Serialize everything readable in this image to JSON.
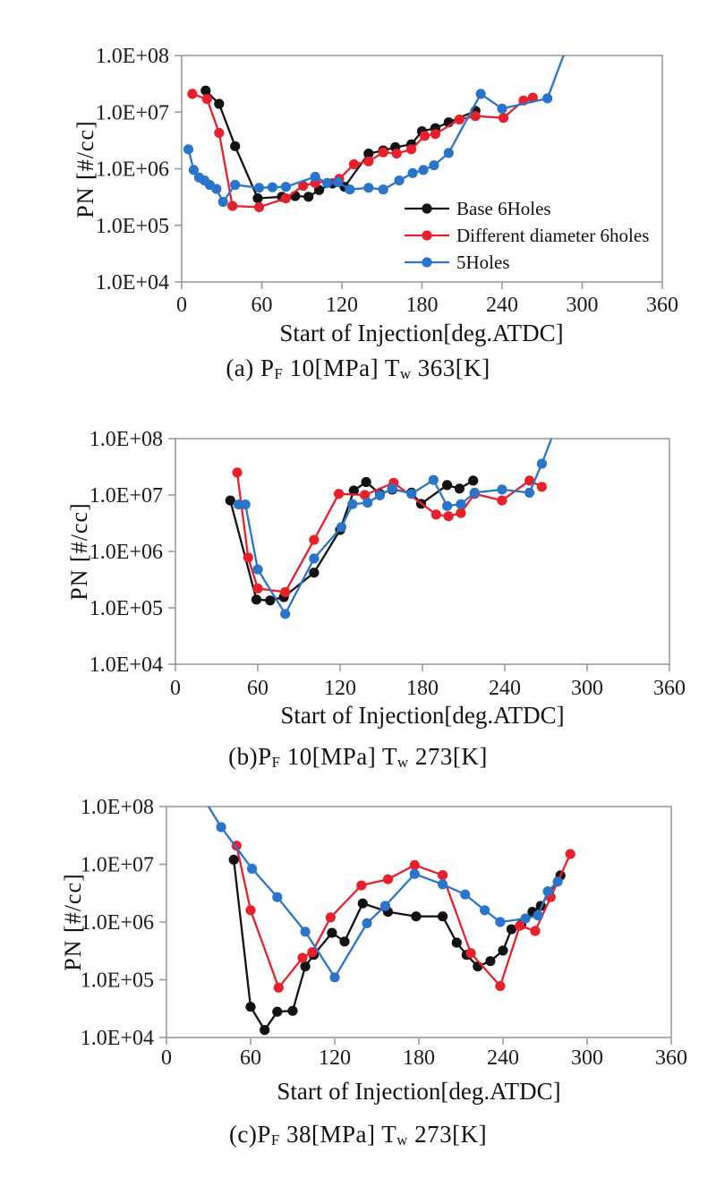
{
  "figure": {
    "x_axis_label": "Start of Injection[deg.ATDC]",
    "y_axis_label": "PN  [#/cc]",
    "y_tick_labels": [
      "1.0E+04",
      "1.0E+05",
      "1.0E+06",
      "1.0E+07",
      "1.0E+08"
    ],
    "x_tick_labels": [
      "0",
      "60",
      "120",
      "180",
      "240",
      "300",
      "360"
    ]
  },
  "colors": {
    "base": "#121212",
    "different": "#e8202b",
    "five": "#2a74c9",
    "axis": "#9b9b9b",
    "text": "#111111"
  },
  "chart_data": [
    {
      "type": "line",
      "xlabel": "Start of Injection[deg.ATDC]",
      "ylabel": "PN  [#/cc]",
      "xlim": [
        0,
        360
      ],
      "ylim": [
        10000,
        100000000
      ],
      "y_scale": "log",
      "grid": false,
      "legend_position": "inside-right-middle",
      "xticks": [
        "0",
        "60",
        "120",
        "180",
        "240",
        "300",
        "360"
      ],
      "yticks": [
        "1.0E+04",
        "1.0E+05",
        "1.0E+06",
        "1.0E+07",
        "1.0E+08"
      ],
      "caption": {
        "p1": "(a) P",
        "s1": "F",
        "p2": " 10[MPa] T",
        "s2": "w",
        "p3": " 363[K]"
      },
      "show_legend": true,
      "series": [
        {
          "name": "Base 6Holes",
          "color": "#121212",
          "points": [
            [
              18,
              24000000.0
            ],
            [
              28,
              14000000.0
            ],
            [
              40,
              2500000.0
            ],
            [
              57,
              300000.0
            ],
            [
              75,
              320000.0
            ],
            [
              85,
              330000.0
            ],
            [
              95,
              320000.0
            ],
            [
              103,
              420000.0
            ],
            [
              113,
              550000.0
            ],
            [
              122,
              480000.0
            ],
            [
              140,
              1850000.0
            ],
            [
              151,
              2100000.0
            ],
            [
              160,
              2400000.0
            ],
            [
              172,
              2700000.0
            ],
            [
              180,
              4600000.0
            ],
            [
              190,
              5200000.0
            ],
            [
              200,
              6600000.0
            ],
            [
              220,
              10500000.0
            ]
          ]
        },
        {
          "name": "Different diameter 6holes",
          "color": "#e8202b",
          "points": [
            [
              8,
              21000000.0
            ],
            [
              19,
              17000000.0
            ],
            [
              28,
              4300000.0
            ],
            [
              38,
              220000.0
            ],
            [
              58,
              210000.0
            ],
            [
              78,
              300000.0
            ],
            [
              91,
              500000.0
            ],
            [
              100,
              560000.0
            ],
            [
              118,
              660000.0
            ],
            [
              129,
              1200000.0
            ],
            [
              140,
              1350000.0
            ],
            [
              151,
              1950000.0
            ],
            [
              161,
              1850000.0
            ],
            [
              172,
              2200000.0
            ],
            [
              182,
              3800000.0
            ],
            [
              190,
              4100000.0
            ],
            [
              208,
              7400000.0
            ],
            [
              220,
              8500000.0
            ],
            [
              241,
              7900000.0
            ],
            [
              256,
              16000000.0
            ],
            [
              263,
              18000000.0
            ]
          ]
        },
        {
          "name": "5Holes",
          "color": "#2a74c9",
          "points": [
            [
              5,
              2200000.0
            ],
            [
              9,
              950000.0
            ],
            [
              13,
              700000.0
            ],
            [
              17,
              620000.0
            ],
            [
              21,
              520000.0
            ],
            [
              26,
              440000.0
            ],
            [
              31,
              260000.0
            ],
            [
              40,
              520000.0
            ],
            [
              58,
              460000.0
            ],
            [
              68,
              470000.0
            ],
            [
              78,
              480000.0
            ],
            [
              100,
              720000.0
            ],
            [
              109,
              560000.0
            ],
            [
              117,
              580000.0
            ],
            [
              126,
              430000.0
            ],
            [
              140,
              460000.0
            ],
            [
              151,
              430000.0
            ],
            [
              163,
              620000.0
            ],
            [
              173,
              840000.0
            ],
            [
              181,
              950000.0
            ],
            [
              189,
              1150000.0
            ],
            [
              200,
              1900000.0
            ],
            [
              224,
              21000000.0
            ],
            [
              240,
              11500000.0
            ],
            [
              274,
              17500000.0
            ],
            [
              286,
              100000000.0
            ]
          ]
        }
      ]
    },
    {
      "type": "line",
      "xlabel": "Start of Injection[deg.ATDC]",
      "ylabel": "PN [#/cc]",
      "xlim": [
        0,
        360
      ],
      "ylim": [
        10000,
        100000000
      ],
      "y_scale": "log",
      "grid": false,
      "xticks": [
        "0",
        "60",
        "120",
        "180",
        "240",
        "300",
        "360"
      ],
      "yticks": [
        "1.0E+04",
        "1.0E+05",
        "1.0E+06",
        "1.0E+07",
        "1.0E+08"
      ],
      "caption": {
        "p1": "(b)P",
        "s1": "F",
        "p2": " 10[MPa] T",
        "s2": "w",
        "p3": " 273[K]"
      },
      "show_legend": false,
      "series": [
        {
          "name": "Base 6Holes",
          "color": "#121212",
          "points": [
            [
              40,
              8000000.0
            ],
            [
              59,
              140000.0
            ],
            [
              69,
              135000.0
            ],
            [
              79,
              155000.0
            ],
            [
              101,
              420000.0
            ],
            [
              120,
              2400000.0
            ],
            [
              130,
              12000000.0
            ],
            [
              139,
              17000000.0
            ],
            [
              149,
              10500000.0
            ],
            [
              158,
              12500000.0
            ],
            [
              172,
              11000000.0
            ],
            [
              179,
              7000000.0
            ],
            [
              198,
              15000000.0
            ],
            [
              207,
              13000000.0
            ],
            [
              217,
              18000000.0
            ]
          ]
        },
        {
          "name": "Different diameter 6holes",
          "color": "#e8202b",
          "points": [
            [
              45,
              25000000.0
            ],
            [
              53,
              780000.0
            ],
            [
              60,
              220000.0
            ],
            [
              80,
              190000.0
            ],
            [
              101,
              1600000.0
            ],
            [
              119,
              10500000.0
            ],
            [
              138,
              10000000.0
            ],
            [
              159,
              16500000.0
            ],
            [
              190,
              4500000.0
            ],
            [
              199,
              4200000.0
            ],
            [
              208,
              4800000.0
            ],
            [
              218,
              10500000.0
            ],
            [
              238,
              8000000.0
            ],
            [
              258,
              18000000.0
            ],
            [
              267,
              14000000.0
            ]
          ]
        },
        {
          "name": "5Holes",
          "color": "#2a74c9",
          "points": [
            [
              46,
              6800000.0
            ],
            [
              51,
              6800000.0
            ],
            [
              60,
              480000.0
            ],
            [
              80,
              78000.0
            ],
            [
              101,
              750000.0
            ],
            [
              121,
              2700000.0
            ],
            [
              129,
              6900000.0
            ],
            [
              140,
              7300000.0
            ],
            [
              149,
              9900000.0
            ],
            [
              158,
              13000000.0
            ],
            [
              172,
              10500000.0
            ],
            [
              188,
              18500000.0
            ],
            [
              198,
              6400000.0
            ],
            [
              208,
              6900000.0
            ],
            [
              218,
              11000000.0
            ],
            [
              238,
              12500000.0
            ],
            [
              258,
              11000000.0
            ],
            [
              267,
              36000000.0
            ],
            [
              274,
              100000000.0
            ]
          ]
        }
      ]
    },
    {
      "type": "line",
      "xlabel": "Start of Injection[deg.ATDC]",
      "ylabel": "PN [#/cc]",
      "xlim": [
        0,
        360
      ],
      "ylim": [
        10000,
        100000000
      ],
      "y_scale": "log",
      "grid": false,
      "xticks": [
        "0",
        "60",
        "120",
        "180",
        "240",
        "300",
        "360"
      ],
      "yticks": [
        "1.0E+04",
        "1.0E+05",
        "1.0E+06",
        "1.0E+07",
        "1.0E+08"
      ],
      "caption": {
        "p1": "(c)P",
        "s1": "F",
        "p2": " 38[MPa] T",
        "s2": "w",
        "p3": " 273[K]"
      },
      "show_legend": false,
      "series": [
        {
          "name": "Base 6Holes",
          "color": "#121212",
          "points": [
            [
              48,
              12000000.0
            ],
            [
              60,
              34000.0
            ],
            [
              70,
              13500.0
            ],
            [
              79,
              28000.0
            ],
            [
              90,
              29000.0
            ],
            [
              99,
              170000.0
            ],
            [
              105,
              270000.0
            ],
            [
              118,
              650000.0
            ],
            [
              127,
              460000.0
            ],
            [
              140,
              2100000.0
            ],
            [
              158,
              1500000.0
            ],
            [
              178,
              1250000.0
            ],
            [
              197,
              1250000.0
            ],
            [
              207,
              440000.0
            ],
            [
              214,
              270000.0
            ],
            [
              222,
              170000.0
            ],
            [
              231,
              210000.0
            ],
            [
              240,
              320000.0
            ],
            [
              246,
              750000.0
            ],
            [
              253,
              900000.0
            ],
            [
              261,
              1500000.0
            ],
            [
              267,
              1900000.0
            ],
            [
              281,
              6400000.0
            ]
          ]
        },
        {
          "name": "Different diameter 6holes",
          "color": "#e8202b",
          "points": [
            [
              50,
              21000000.0
            ],
            [
              60,
              1600000.0
            ],
            [
              80,
              73000.0
            ],
            [
              97,
              240000.0
            ],
            [
              104,
              300000.0
            ],
            [
              117,
              1200000.0
            ],
            [
              139,
              4300000.0
            ],
            [
              158,
              5500000.0
            ],
            [
              177,
              9700000.0
            ],
            [
              197,
              6500000.0
            ],
            [
              217,
              290000.0
            ],
            [
              238,
              78000.0
            ],
            [
              252,
              860000.0
            ],
            [
              263,
              700000.0
            ],
            [
              274,
              2700000.0
            ],
            [
              288,
              15000000.0
            ]
          ]
        },
        {
          "name": "5Holes",
          "color": "#2a74c9",
          "points": [
            [
              30,
              100000000.0
            ],
            [
              39,
              44000000.0
            ],
            [
              61,
              8400000.0
            ],
            [
              79,
              2700000.0
            ],
            [
              99,
              680000.0
            ],
            [
              120,
              110000.0
            ],
            [
              143,
              950000.0
            ],
            [
              156,
              1900000.0
            ],
            [
              177,
              6800000.0
            ],
            [
              197,
              4500000.0
            ],
            [
              213,
              3000000.0
            ],
            [
              227,
              1600000.0
            ],
            [
              238,
              1000000.0
            ],
            [
              256,
              1150000.0
            ],
            [
              265,
              1300000.0
            ],
            [
              272,
              3400000.0
            ],
            [
              279,
              5000000.0
            ]
          ]
        }
      ]
    }
  ]
}
